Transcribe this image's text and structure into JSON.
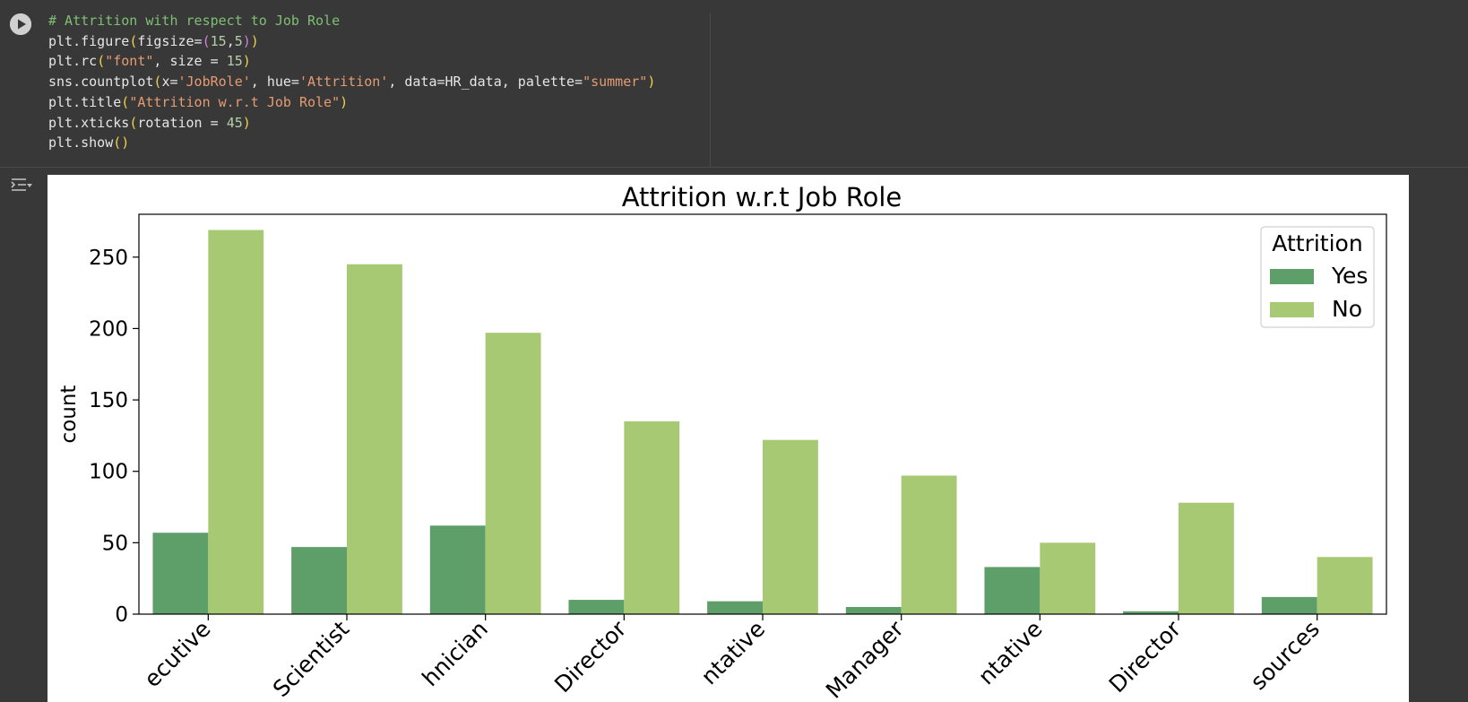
{
  "code": {
    "lines": [
      "# Attrition with respect to Job Role",
      "plt.figure(figsize=(15,5))",
      "plt.rc(\"font\", size = 15)",
      "sns.countplot(x='JobRole', hue='Attrition', data=HR_data, palette=\"summer\")",
      "plt.title(\"Attrition w.r.t Job Role\")",
      "plt.xticks(rotation = 45)",
      "plt.show()"
    ]
  },
  "icons": {
    "run": "play-icon",
    "output_toggle": "output-collapse-icon"
  },
  "colors": {
    "yes": "#5d9e69",
    "no": "#a8c974",
    "background": "#383838"
  },
  "chart_data": {
    "type": "bar",
    "title": "Attrition w.r.t Job Role",
    "xlabel": "",
    "ylabel": "count",
    "ylim": [
      0,
      280
    ],
    "yticks": [
      0,
      50,
      100,
      150,
      200,
      250
    ],
    "categories": [
      "ecutive",
      "Scientist",
      "hnician",
      "Director",
      "ntative",
      "Manager",
      "ntative",
      "Director",
      "sources"
    ],
    "series": [
      {
        "name": "Yes",
        "values": [
          57,
          47,
          62,
          10,
          9,
          5,
          33,
          2,
          12
        ]
      },
      {
        "name": "No",
        "values": [
          269,
          245,
          197,
          135,
          122,
          97,
          50,
          78,
          40
        ]
      }
    ],
    "legend": {
      "title": "Attrition",
      "position": "top-right"
    },
    "grid": false
  }
}
